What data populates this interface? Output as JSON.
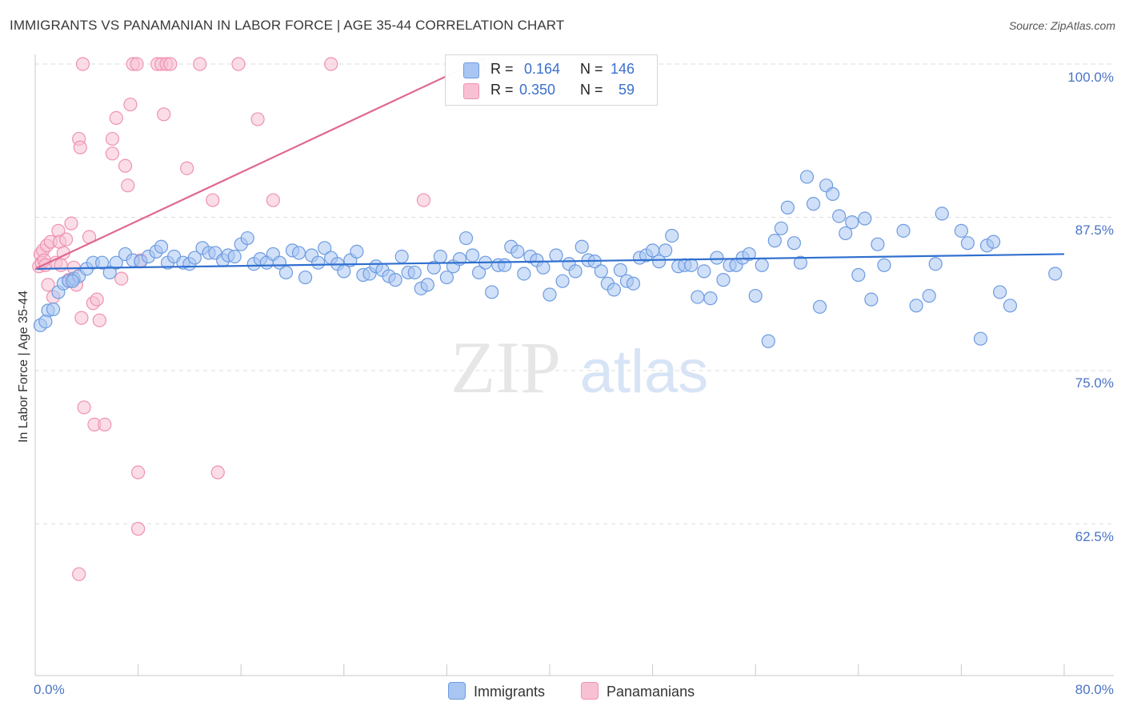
{
  "chart_data": {
    "type": "scatter",
    "title": "IMMIGRANTS VS PANAMANIAN IN LABOR FORCE | AGE 35-44 CORRELATION CHART",
    "source": "Source: ZipAtlas.com",
    "xlabel": "",
    "ylabel": "In Labor Force | Age 35-44",
    "xlim": [
      0,
      80
    ],
    "ylim": [
      51,
      101
    ],
    "x_tick_labels": [
      "0.0%",
      "80.0%"
    ],
    "y_ticks": [
      {
        "value": 100,
        "label": "100.0%"
      },
      {
        "value": 87.5,
        "label": "87.5%"
      },
      {
        "value": 75,
        "label": "75.0%"
      },
      {
        "value": 62.5,
        "label": "62.5%"
      }
    ],
    "watermark": "ZIPatlas",
    "colors": {
      "immigrants_fill": "#a9c6f2",
      "immigrants_stroke": "#6d9be0",
      "immigrants_line": "#2f6fcf",
      "panamanians_fill": "#f7c1d3",
      "panamanians_stroke": "#ee92b0",
      "panamanians_line": "#e06891",
      "tick_text": "#4a74c4",
      "grid": "#dddddd"
    },
    "legend": {
      "rows": [
        {
          "r_label": "R =",
          "r_value": "0.164",
          "n_label": "N =",
          "n_value": "146"
        },
        {
          "r_label": "R =",
          "r_value": "0.350",
          "n_label": "N =",
          "n_value": "59"
        }
      ]
    },
    "bottom_legend": [
      "Immigrants",
      "Panamanians"
    ],
    "series": [
      {
        "name": "Immigrants",
        "trend": {
          "x0": 0,
          "y0": 83.3,
          "x1": 80,
          "y1": 84.5
        },
        "points": [
          [
            0.4,
            78.7
          ],
          [
            1.0,
            79.9
          ],
          [
            1.4,
            80.0
          ],
          [
            1.8,
            81.4
          ],
          [
            2.2,
            82.1
          ],
          [
            2.6,
            82.3
          ],
          [
            3.0,
            82.5
          ],
          [
            3.4,
            82.7
          ],
          [
            4.0,
            83.3
          ],
          [
            4.5,
            83.8
          ],
          [
            5.2,
            83.8
          ],
          [
            5.8,
            83.0
          ],
          [
            6.3,
            83.8
          ],
          [
            7.0,
            84.5
          ],
          [
            7.6,
            84.0
          ],
          [
            8.2,
            83.9
          ],
          [
            8.8,
            84.3
          ],
          [
            9.4,
            84.7
          ],
          [
            9.8,
            85.1
          ],
          [
            10.3,
            83.8
          ],
          [
            10.8,
            84.3
          ],
          [
            11.5,
            83.8
          ],
          [
            12.0,
            83.7
          ],
          [
            12.4,
            84.2
          ],
          [
            13.0,
            85.0
          ],
          [
            13.5,
            84.6
          ],
          [
            14.0,
            84.6
          ],
          [
            14.6,
            84.0
          ],
          [
            15.0,
            84.4
          ],
          [
            15.5,
            84.3
          ],
          [
            16.0,
            85.3
          ],
          [
            16.5,
            85.8
          ],
          [
            17.0,
            83.7
          ],
          [
            17.5,
            84.1
          ],
          [
            18.0,
            83.8
          ],
          [
            18.5,
            84.5
          ],
          [
            19.0,
            83.8
          ],
          [
            19.5,
            83.0
          ],
          [
            20.0,
            84.8
          ],
          [
            20.5,
            84.6
          ],
          [
            21.0,
            82.6
          ],
          [
            21.5,
            84.4
          ],
          [
            22.0,
            83.8
          ],
          [
            22.5,
            85.0
          ],
          [
            23.0,
            84.2
          ],
          [
            23.5,
            83.7
          ],
          [
            24.0,
            83.1
          ],
          [
            24.5,
            84.0
          ],
          [
            25.0,
            84.7
          ],
          [
            25.5,
            82.8
          ],
          [
            26.0,
            82.9
          ],
          [
            26.5,
            83.5
          ],
          [
            27.0,
            83.2
          ],
          [
            27.5,
            82.7
          ],
          [
            28.0,
            82.4
          ],
          [
            28.5,
            84.3
          ],
          [
            29.0,
            83.0
          ],
          [
            29.5,
            83.0
          ],
          [
            30.0,
            81.7
          ],
          [
            30.5,
            82.0
          ],
          [
            31.0,
            83.4
          ],
          [
            31.5,
            84.3
          ],
          [
            32.0,
            82.6
          ],
          [
            32.5,
            83.5
          ],
          [
            33.0,
            84.1
          ],
          [
            33.5,
            85.8
          ],
          [
            34.0,
            84.4
          ],
          [
            34.5,
            83.0
          ],
          [
            35.0,
            83.8
          ],
          [
            35.5,
            81.4
          ],
          [
            36.0,
            83.6
          ],
          [
            36.5,
            83.6
          ],
          [
            37.0,
            85.1
          ],
          [
            37.5,
            84.7
          ],
          [
            38.0,
            82.9
          ],
          [
            38.5,
            84.3
          ],
          [
            39.0,
            84.0
          ],
          [
            39.5,
            83.4
          ],
          [
            40.0,
            81.2
          ],
          [
            40.5,
            84.4
          ],
          [
            41.0,
            82.3
          ],
          [
            41.5,
            83.7
          ],
          [
            42.0,
            83.1
          ],
          [
            42.5,
            85.1
          ],
          [
            43.0,
            84.0
          ],
          [
            43.5,
            83.9
          ],
          [
            44.0,
            83.1
          ],
          [
            44.5,
            82.1
          ],
          [
            45.0,
            81.6
          ],
          [
            45.5,
            83.2
          ],
          [
            46.0,
            82.3
          ],
          [
            46.5,
            82.1
          ],
          [
            47.0,
            84.2
          ],
          [
            47.5,
            84.4
          ],
          [
            48.0,
            84.8
          ],
          [
            48.5,
            83.9
          ],
          [
            49.0,
            84.8
          ],
          [
            49.5,
            86.0
          ],
          [
            50.0,
            83.5
          ],
          [
            50.5,
            83.6
          ],
          [
            51.0,
            83.6
          ],
          [
            51.5,
            81.0
          ],
          [
            52.0,
            83.1
          ],
          [
            52.5,
            80.9
          ],
          [
            53.0,
            84.2
          ],
          [
            53.5,
            82.4
          ],
          [
            54.0,
            83.6
          ],
          [
            54.5,
            83.6
          ],
          [
            55.0,
            84.2
          ],
          [
            55.5,
            84.5
          ],
          [
            56.0,
            81.1
          ],
          [
            56.5,
            83.6
          ],
          [
            57.0,
            77.4
          ],
          [
            57.5,
            85.6
          ],
          [
            58.0,
            86.6
          ],
          [
            58.5,
            88.3
          ],
          [
            59.0,
            85.4
          ],
          [
            59.5,
            83.8
          ],
          [
            60.0,
            90.8
          ],
          [
            60.5,
            88.6
          ],
          [
            61.0,
            80.2
          ],
          [
            61.5,
            90.1
          ],
          [
            62.0,
            89.4
          ],
          [
            62.5,
            87.6
          ],
          [
            63.0,
            86.2
          ],
          [
            63.5,
            87.1
          ],
          [
            64.0,
            82.8
          ],
          [
            64.5,
            87.4
          ],
          [
            65.0,
            80.8
          ],
          [
            65.5,
            85.3
          ],
          [
            66.0,
            83.6
          ],
          [
            67.5,
            86.4
          ],
          [
            68.5,
            80.3
          ],
          [
            69.5,
            81.1
          ],
          [
            70.0,
            83.7
          ],
          [
            70.5,
            87.8
          ],
          [
            72.0,
            86.4
          ],
          [
            72.5,
            85.4
          ],
          [
            73.5,
            77.6
          ],
          [
            74.0,
            85.2
          ],
          [
            74.5,
            85.5
          ],
          [
            75.0,
            81.4
          ],
          [
            75.8,
            80.3
          ],
          [
            79.3,
            82.9
          ],
          [
            0.8,
            79.0
          ],
          [
            2.9,
            82.3
          ]
        ]
      },
      {
        "name": "Panamanians",
        "trend": {
          "x0": 0,
          "y0": 83.3,
          "x1": 35,
          "y1": 100.5
        },
        "points": [
          [
            0.3,
            83.5
          ],
          [
            0.4,
            84.5
          ],
          [
            0.5,
            83.8
          ],
          [
            0.6,
            84.8
          ],
          [
            0.7,
            84.0
          ],
          [
            0.8,
            83.6
          ],
          [
            0.9,
            85.2
          ],
          [
            1.0,
            82.0
          ],
          [
            1.2,
            85.5
          ],
          [
            1.4,
            81.0
          ],
          [
            1.6,
            83.8
          ],
          [
            1.8,
            86.4
          ],
          [
            1.9,
            85.5
          ],
          [
            2.0,
            83.6
          ],
          [
            2.2,
            84.6
          ],
          [
            2.4,
            85.7
          ],
          [
            2.6,
            82.4
          ],
          [
            2.8,
            87.0
          ],
          [
            3.0,
            83.4
          ],
          [
            3.2,
            82.0
          ],
          [
            3.6,
            79.3
          ],
          [
            3.8,
            72.0
          ],
          [
            4.2,
            85.9
          ],
          [
            4.5,
            80.5
          ],
          [
            4.8,
            80.8
          ],
          [
            5.0,
            79.1
          ],
          [
            3.4,
            93.9
          ],
          [
            3.5,
            93.2
          ],
          [
            4.6,
            70.6
          ],
          [
            5.4,
            70.6
          ],
          [
            3.4,
            58.4
          ],
          [
            6.0,
            92.7
          ],
          [
            6.0,
            93.9
          ],
          [
            6.3,
            95.6
          ],
          [
            6.7,
            82.5
          ],
          [
            7.0,
            91.7
          ],
          [
            7.2,
            90.1
          ],
          [
            7.4,
            96.7
          ],
          [
            7.6,
            100.0
          ],
          [
            7.9,
            100.0
          ],
          [
            8.0,
            66.7
          ],
          [
            8.0,
            62.1
          ],
          [
            8.2,
            84.0
          ],
          [
            9.5,
            100.0
          ],
          [
            9.8,
            100.0
          ],
          [
            10.0,
            95.9
          ],
          [
            10.2,
            100.0
          ],
          [
            10.5,
            100.0
          ],
          [
            11.8,
            91.5
          ],
          [
            12.8,
            100.0
          ],
          [
            13.8,
            88.9
          ],
          [
            14.2,
            66.7
          ],
          [
            15.8,
            100.0
          ],
          [
            17.3,
            95.5
          ],
          [
            18.5,
            88.9
          ],
          [
            23.0,
            100.0
          ],
          [
            30.2,
            88.9
          ],
          [
            3.7,
            100.0
          ],
          [
            34.5,
            100.0
          ]
        ]
      }
    ]
  }
}
